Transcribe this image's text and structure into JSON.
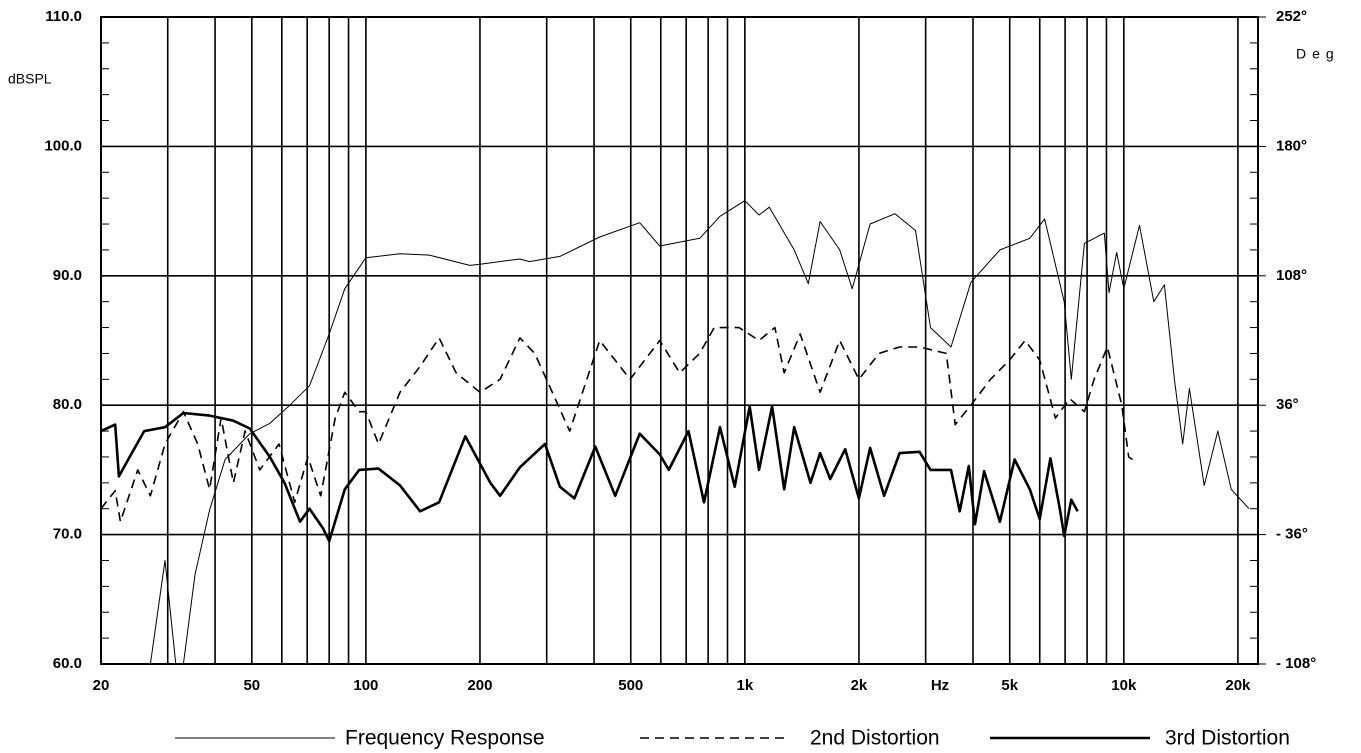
{
  "chart_data": {
    "type": "line",
    "log_x": true,
    "grid": true,
    "ylabel": "dBSPL",
    "y2label": "Deg",
    "xlabel": "Hz",
    "xlim": [
      20,
      22600
    ],
    "ylim": [
      60,
      110
    ],
    "y2lim": [
      -108,
      252
    ],
    "xticks": [
      20,
      50,
      100,
      200,
      500,
      {
        "value": 1000,
        "label": "1k"
      },
      {
        "value": 2000,
        "label": "2k"
      },
      {
        "value": 5000,
        "label": "5k"
      },
      {
        "value": 10000,
        "label": "10k"
      },
      {
        "value": 20000,
        "label": "20k"
      }
    ],
    "xminor_ticks": [
      30,
      40,
      60,
      70,
      80,
      90,
      300,
      400,
      600,
      700,
      800,
      900,
      3000,
      4000,
      6000,
      7000,
      8000,
      9000
    ],
    "yticks": [
      {
        "value": 60,
        "label": "60.0"
      },
      {
        "value": 70,
        "label": "70.0"
      },
      {
        "value": 80,
        "label": "80.0"
      },
      {
        "value": 90,
        "label": "90.0"
      },
      {
        "value": 100,
        "label": "100.0"
      },
      {
        "value": 110,
        "label": "110.0"
      }
    ],
    "yminor_ticks": [
      62,
      64,
      66,
      68,
      72,
      74,
      76,
      78,
      82,
      84,
      86,
      88,
      92,
      94,
      96,
      98,
      102,
      104,
      106,
      108
    ],
    "y2ticks": [
      {
        "value": -108,
        "label": "- 108°"
      },
      {
        "value": -36,
        "label": "- 36°"
      },
      {
        "value": 36,
        "label": "36°"
      },
      {
        "value": 108,
        "label": "108°"
      },
      {
        "value": 180,
        "label": "180°"
      },
      {
        "value": 252,
        "label": "252°"
      }
    ],
    "series": [
      {
        "name": "Frequency Response",
        "color": "#000000",
        "style": "solid",
        "width": 1,
        "x": [
          20,
          27,
          29.5,
          31.5,
          33,
          35.4,
          38.7,
          42.5,
          49.4,
          55.8,
          63,
          71,
          80,
          88,
          100,
          123,
          147,
          188,
          200,
          255,
          270,
          325,
          414,
          528,
          596,
          760,
          860,
          1000,
          1090,
          1160,
          1350,
          1470,
          1580,
          1780,
          1920,
          2140,
          2490,
          2820,
          3090,
          3500,
          3950,
          4710,
          5650,
          6180,
          6960,
          7270,
          7870,
          8880,
          9140,
          9580,
          10000,
          11000,
          12000,
          12800,
          13600,
          14300,
          14900,
          16300,
          17700,
          19200,
          21400
        ],
        "values": [
          60,
          60,
          68,
          60,
          60,
          66.9,
          71.9,
          75.8,
          77.8,
          78.6,
          80,
          81.5,
          85.5,
          89,
          91.4,
          91.7,
          91.6,
          90.8,
          90.9,
          91.3,
          91.1,
          91.5,
          93,
          94.1,
          92.3,
          92.9,
          94.6,
          95.8,
          94.7,
          95.3,
          92,
          89.4,
          94.2,
          92,
          89,
          94,
          94.8,
          93.5,
          86,
          84.5,
          89.5,
          92,
          92.9,
          94.4,
          88,
          82,
          92.5,
          93.3,
          88.7,
          91.8,
          89,
          93.9,
          88,
          89.3,
          82,
          77,
          81.3,
          73.8,
          78,
          73.5,
          72
        ]
      },
      {
        "name": "2nd Distortion",
        "color": "#000000",
        "style": "dashed",
        "width": 1.6,
        "x": [
          20,
          21.8,
          22.5,
          25,
          27,
          29.5,
          33,
          36,
          38.7,
          41.5,
          44.7,
          48,
          52.5,
          59,
          64.9,
          70.3,
          76,
          83,
          88,
          96,
          100,
          108,
          123,
          139,
          156,
          173,
          200,
          226,
          255,
          279,
          305,
          345,
          414,
          498,
          596,
          673,
          760,
          830,
          965,
          1090,
          1200,
          1270,
          1400,
          1580,
          1780,
          2000,
          2260,
          2560,
          2890,
          3400,
          3590,
          3950,
          4450,
          5000,
          5490,
          6000,
          6600,
          7200,
          7870,
          8350,
          9050,
          9880,
          10300,
          10550
        ],
        "values": [
          72,
          73.4,
          71,
          75,
          73,
          77,
          79.5,
          77,
          73.5,
          79,
          74,
          78,
          75,
          77,
          72.5,
          76,
          73,
          79,
          81,
          79.5,
          79.5,
          77,
          81,
          83,
          85.2,
          82.5,
          81,
          82,
          85.2,
          84,
          81.5,
          78,
          85,
          82,
          85,
          82.5,
          84,
          86,
          86,
          85,
          86,
          82.5,
          85.5,
          81,
          85,
          82,
          84,
          84.5,
          84.5,
          84,
          78.5,
          80,
          82,
          83.5,
          85,
          83.5,
          79,
          80.5,
          79.5,
          82,
          84.5,
          80,
          76,
          75.8
        ]
      },
      {
        "name": "3rd Distortion",
        "color": "#000000",
        "style": "solid",
        "width": 2.6,
        "x": [
          20,
          21.8,
          22.3,
          23.8,
          26,
          29.5,
          33,
          38.7,
          44.7,
          49.4,
          55.8,
          61,
          67,
          71,
          77,
          80,
          88,
          96,
          108,
          123,
          139,
          156,
          183,
          213,
          226,
          255,
          297,
          325,
          355,
          403,
          455,
          528,
          596,
          630,
          710,
          780,
          860,
          940,
          1030,
          1090,
          1180,
          1270,
          1350,
          1490,
          1580,
          1680,
          1840,
          2000,
          2140,
          2330,
          2560,
          2890,
          3090,
          3500,
          3690,
          3900,
          4050,
          4280,
          4710,
          5150,
          5650,
          6000,
          6400,
          6780,
          6960,
          7270,
          7550
        ],
        "values": [
          78,
          78.5,
          74.5,
          76,
          78,
          78.3,
          79.4,
          79.2,
          78.8,
          78.2,
          76,
          74,
          71,
          72,
          70.5,
          69.5,
          73.5,
          75,
          75.1,
          73.8,
          71.8,
          72.5,
          77.6,
          74,
          73,
          75.2,
          77,
          73.7,
          72.8,
          76.8,
          73,
          77.8,
          76.2,
          75,
          78,
          72.5,
          78.3,
          73.7,
          79.9,
          75,
          79.9,
          73.5,
          78.3,
          74,
          76.3,
          74.3,
          76.6,
          72.8,
          76.7,
          73,
          76.3,
          76.4,
          75,
          75,
          71.8,
          75.3,
          70.8,
          74.9,
          71,
          75.8,
          73.5,
          71.2,
          75.9,
          72,
          69.9,
          72.7,
          71.8
        ]
      }
    ]
  }
}
